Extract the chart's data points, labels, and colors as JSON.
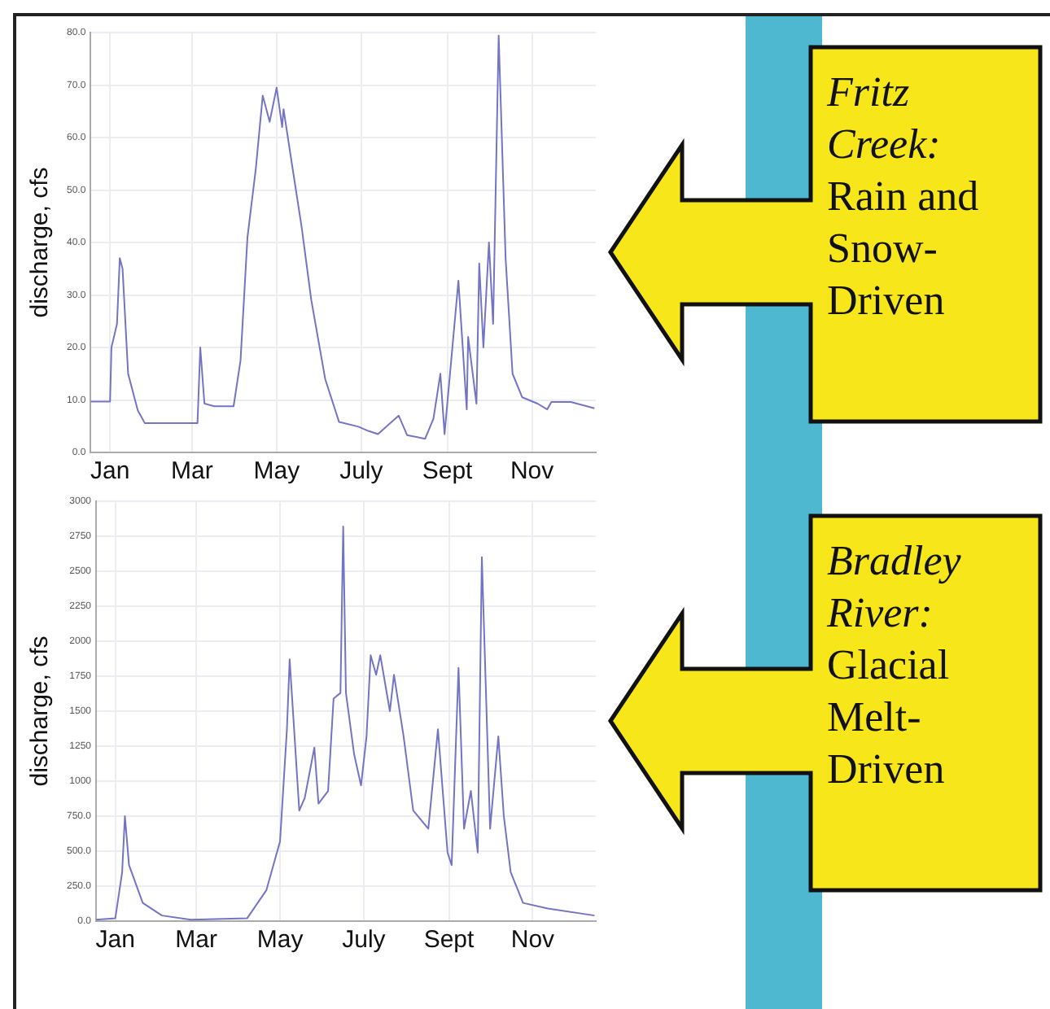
{
  "chart_data": [
    {
      "type": "line",
      "ylabel": "discharge, cfs",
      "annotations": [
        "Fritz Creek:",
        "Rain and Snow-Driven"
      ],
      "grid": true,
      "legend": false,
      "marker": "none",
      "line_style": "solid",
      "xlim": [
        "--01-01",
        "--12-31"
      ],
      "xticks": [
        {
          "value": "--01-15",
          "label": "Jan"
        },
        {
          "value": "--03-15",
          "label": "Mar"
        },
        {
          "value": "--05-15",
          "label": "May"
        },
        {
          "value": "--07-15",
          "label": "July"
        },
        {
          "value": "--09-15",
          "label": "Sept"
        },
        {
          "value": "--11-15",
          "label": "Nov"
        }
      ],
      "ylim": [
        0,
        80
      ],
      "yticks": [
        {
          "value": 0,
          "label": "0.0"
        },
        {
          "value": 10,
          "label": "10.0"
        },
        {
          "value": 20,
          "label": "20.0"
        },
        {
          "value": 30,
          "label": "30.0"
        },
        {
          "value": 40,
          "label": "40.0"
        },
        {
          "value": 50,
          "label": "50.0"
        },
        {
          "value": 60,
          "label": "60.0"
        },
        {
          "value": 70,
          "label": "70.0"
        },
        {
          "value": 80,
          "label": "80.0"
        }
      ],
      "series": [
        {
          "color": "#7474c4",
          "x": [
            "--01-01",
            "--01-15",
            "--01-16",
            "--01-20",
            "--01-22",
            "--01-24",
            "--01-28",
            "--02-04",
            "--02-09",
            "--03-19",
            "--03-21",
            "--03-24",
            "--03-31",
            "--04-14",
            "--04-19",
            "--04-24",
            "--04-30",
            "--05-05",
            "--05-10",
            "--05-15",
            "--05-19",
            "--05-20",
            "--05-26",
            "--06-02",
            "--06-09",
            "--06-19",
            "--06-29",
            "--07-13",
            "--07-20",
            "--07-27",
            "--08-11",
            "--08-17",
            "--08-30",
            "--09-05",
            "--09-10",
            "--09-13",
            "--09-23",
            "--09-29",
            "--09-30",
            "--10-06",
            "--10-08",
            "--10-11",
            "--10-15",
            "--10-18",
            "--10-22",
            "--10-27",
            "--11-01",
            "--11-08",
            "--11-19",
            "--11-26",
            "--11-29",
            "--12-13",
            "--12-30"
          ],
          "values": [
            9.7,
            9.7,
            20,
            24.5,
            37,
            35,
            15,
            8,
            5.6,
            5.6,
            20,
            9.3,
            8.8,
            8.8,
            17.5,
            41,
            54,
            68,
            63,
            69.5,
            62,
            65.4,
            55,
            43,
            29,
            14,
            5.8,
            4.9,
            4.1,
            3.5,
            7,
            3.3,
            2.6,
            6.4,
            15,
            3.5,
            32.7,
            8.2,
            22,
            9.3,
            36,
            20,
            40,
            24.5,
            79.4,
            37,
            15,
            10.5,
            9.3,
            8.2,
            9.6,
            9.6,
            8.4
          ]
        }
      ]
    },
    {
      "type": "line",
      "ylabel": "discharge, cfs",
      "annotations": [
        "Bradley River:",
        "Glacial Melt-Driven"
      ],
      "grid": true,
      "legend": false,
      "marker": "none",
      "line_style": "solid",
      "xlim": [
        "--01-01",
        "--12-31"
      ],
      "xticks": [
        {
          "value": "--01-15",
          "label": "Jan"
        },
        {
          "value": "--03-15",
          "label": "Mar"
        },
        {
          "value": "--05-15",
          "label": "May"
        },
        {
          "value": "--07-15",
          "label": "July"
        },
        {
          "value": "--09-15",
          "label": "Sept"
        },
        {
          "value": "--11-15",
          "label": "Nov"
        }
      ],
      "ylim": [
        0,
        3000
      ],
      "yticks": [
        {
          "value": 0,
          "label": "0.0"
        },
        {
          "value": 250,
          "label": "250.0"
        },
        {
          "value": 500,
          "label": "500.0"
        },
        {
          "value": 750,
          "label": "750.0"
        },
        {
          "value": 1000,
          "label": "1000"
        },
        {
          "value": 1250,
          "label": "1250"
        },
        {
          "value": 1500,
          "label": "1500"
        },
        {
          "value": 1750,
          "label": "1750"
        },
        {
          "value": 2000,
          "label": "2000"
        },
        {
          "value": 2250,
          "label": "2250"
        },
        {
          "value": 2500,
          "label": "2500"
        },
        {
          "value": 2750,
          "label": "2750"
        },
        {
          "value": 3000,
          "label": "3000"
        }
      ],
      "series": [
        {
          "color": "#7474c4",
          "x": [
            "--01-01",
            "--01-15",
            "--01-20",
            "--01-22",
            "--01-25",
            "--02-04",
            "--02-18",
            "--03-11",
            "--04-21",
            "--05-05",
            "--05-15",
            "--05-20",
            "--05-22",
            "--05-25",
            "--05-29",
            "--06-02",
            "--06-09",
            "--06-12",
            "--06-19",
            "--06-23",
            "--06-28",
            "--06-30",
            "--07-02",
            "--07-08",
            "--07-13",
            "--07-17",
            "--07-20",
            "--07-24",
            "--07-27",
            "--08-03",
            "--08-06",
            "--08-13",
            "--08-20",
            "--08-31",
            "--09-07",
            "--09-14",
            "--09-17",
            "--09-22",
            "--09-26",
            "--10-01",
            "--10-06",
            "--10-09",
            "--10-15",
            "--10-21",
            "--10-25",
            "--10-30",
            "--11-08",
            "--11-26",
            "--12-30"
          ],
          "values": [
            10,
            20,
            350,
            750,
            400,
            130,
            40,
            10,
            20,
            220,
            570,
            1370,
            1870,
            1410,
            790,
            880,
            1240,
            840,
            930,
            1590,
            1630,
            2820,
            1630,
            1190,
            970,
            1320,
            1900,
            1760,
            1900,
            1500,
            1760,
            1320,
            790,
            660,
            1370,
            490,
            400,
            1810,
            660,
            930,
            490,
            2600,
            660,
            1320,
            750,
            350,
            130,
            90,
            40
          ]
        }
      ]
    }
  ]
}
